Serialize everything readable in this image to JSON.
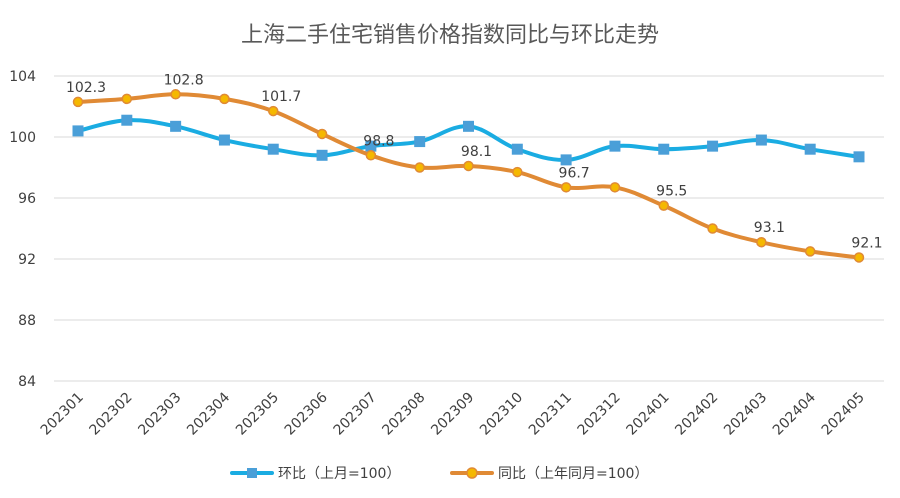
{
  "chart_data": {
    "type": "line",
    "title": "上海二手住宅销售价格指数同比与环比走势",
    "xlabel": "",
    "ylabel": "",
    "ylim": [
      84,
      104
    ],
    "yticks": [
      "84",
      "88",
      "92",
      "96",
      "100",
      "104"
    ],
    "grid": true,
    "legend": "bottom",
    "categories": [
      "202301",
      "202302",
      "202303",
      "202304",
      "202305",
      "202306",
      "202307",
      "202308",
      "202309",
      "202310",
      "202311",
      "202312",
      "202401",
      "202402",
      "202403",
      "202404",
      "202405"
    ],
    "series": [
      {
        "name": "环比（上月=100）",
        "color": "#1aace2",
        "marker": "square",
        "values": [
          100.4,
          101.1,
          100.7,
          99.8,
          99.2,
          98.8,
          99.4,
          99.7,
          100.7,
          99.2,
          98.5,
          99.4,
          99.2,
          99.4,
          99.8,
          99.2,
          98.7
        ]
      },
      {
        "name": "同比（上年同月=100）",
        "color": "#e08a35",
        "marker": "circle",
        "values": [
          102.3,
          102.5,
          102.8,
          102.5,
          101.7,
          100.2,
          98.8,
          98.0,
          98.1,
          97.7,
          96.7,
          96.7,
          95.5,
          94.0,
          93.1,
          92.5,
          92.1
        ],
        "labels": [
          "102.3",
          "",
          "102.8",
          "",
          "101.7",
          "",
          "98.8",
          "",
          "98.1",
          "",
          "96.7",
          "",
          "95.5",
          "",
          "93.1",
          "",
          "92.1"
        ]
      }
    ]
  }
}
